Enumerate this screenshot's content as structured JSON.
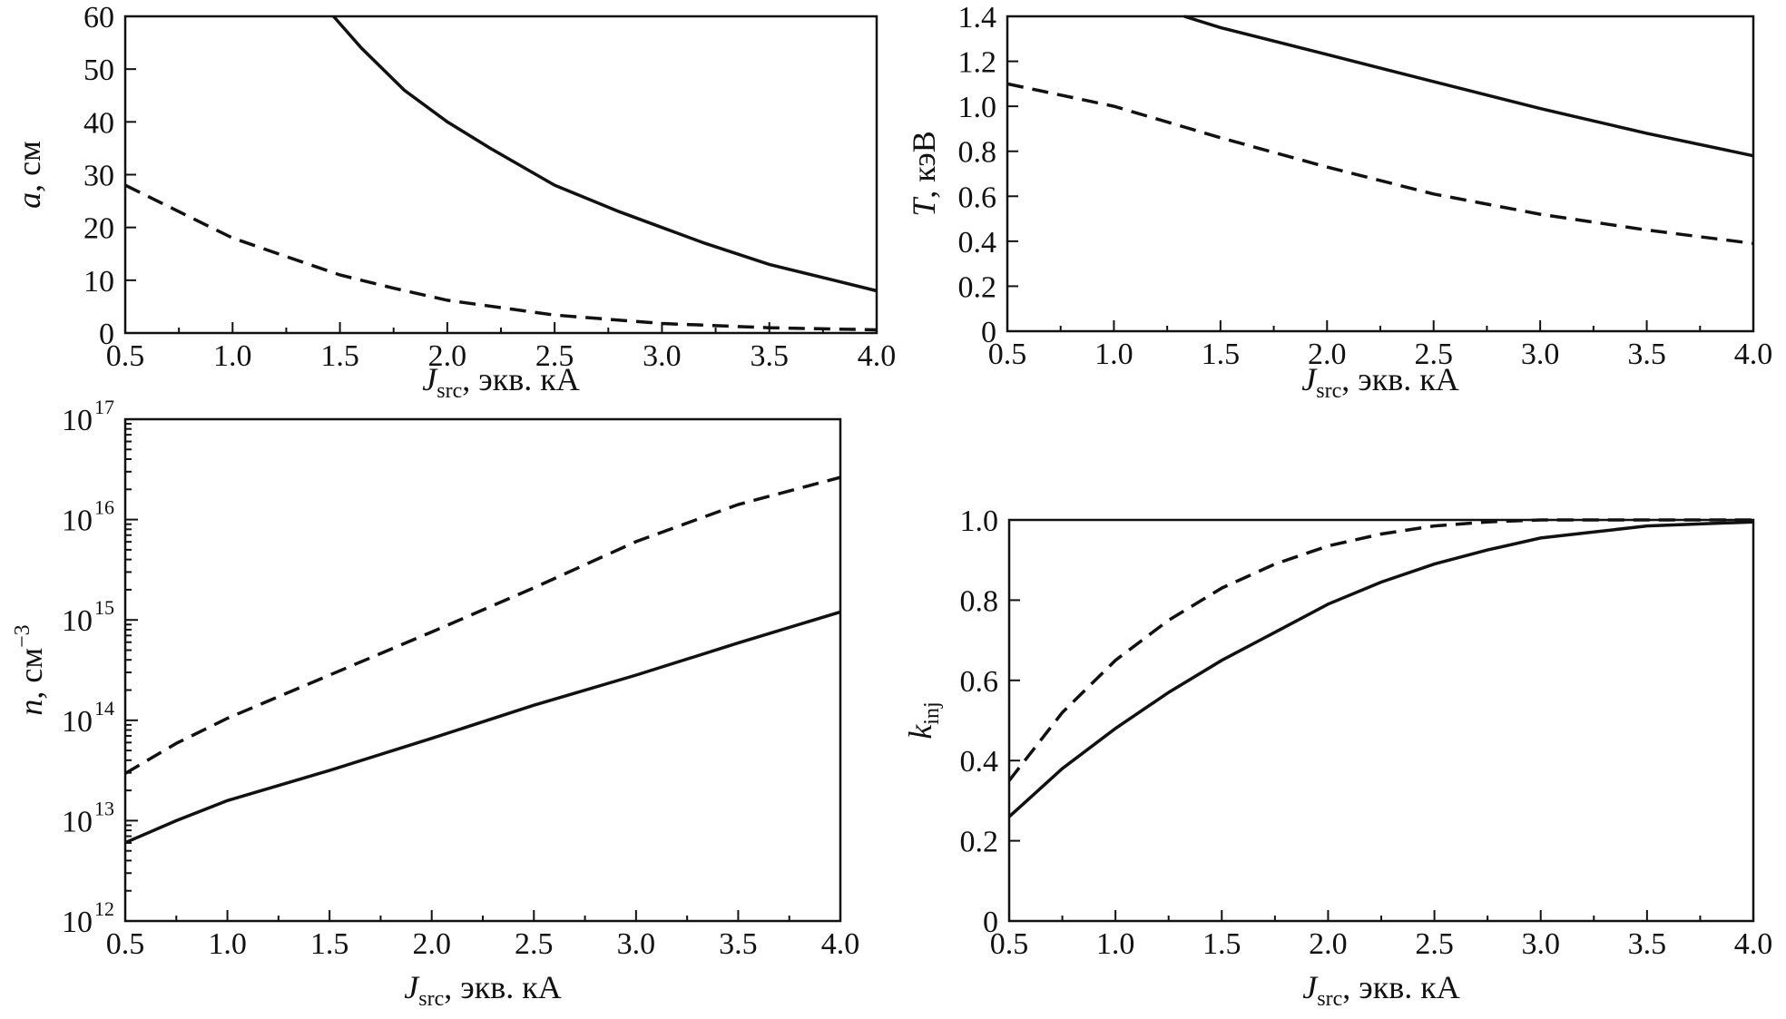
{
  "chart_data": [
    {
      "type": "line",
      "xlabel": "J",
      "xlabel_sub": "src",
      "xlabel_unit": ", экв. кА",
      "ylabel": "a",
      "ylabel_unit": ", см",
      "xlim": [
        0.5,
        4.0
      ],
      "ylim": [
        0,
        60
      ],
      "xticks": [
        0.5,
        1.0,
        1.5,
        2.0,
        2.5,
        3.0,
        3.5,
        4.0
      ],
      "xtick_labels": [
        "0.5",
        "1.0",
        "1.5",
        "2.0",
        "2.5",
        "3.0",
        "3.5",
        "4.0"
      ],
      "yticks": [
        0,
        10,
        20,
        30,
        40,
        50,
        60
      ],
      "ytick_labels": [
        "0",
        "10",
        "20",
        "30",
        "40",
        "50",
        "60"
      ],
      "series": [
        {
          "name": "solid",
          "style": "solid",
          "x": [
            1.47,
            1.6,
            1.8,
            2.0,
            2.2,
            2.5,
            2.8,
            3.0,
            3.2,
            3.5,
            3.8,
            4.0
          ],
          "y": [
            60,
            54,
            46,
            40,
            35,
            28,
            23,
            20,
            17,
            13,
            10,
            8
          ]
        },
        {
          "name": "dashed",
          "style": "dashed",
          "x": [
            0.5,
            0.75,
            1.0,
            1.25,
            1.5,
            1.75,
            2.0,
            2.5,
            3.0,
            3.5,
            4.0
          ],
          "y": [
            28,
            23,
            18,
            14.5,
            11,
            8.5,
            6.2,
            3.4,
            1.8,
            1.0,
            0.6
          ]
        }
      ]
    },
    {
      "type": "line",
      "xlabel": "J",
      "xlabel_sub": "src",
      "xlabel_unit": ", экв. кА",
      "ylabel": "T",
      "ylabel_unit": ", кэВ",
      "xlim": [
        0.5,
        4.0
      ],
      "ylim": [
        0,
        1.4
      ],
      "xticks": [
        0.5,
        1.0,
        1.5,
        2.0,
        2.5,
        3.0,
        3.5,
        4.0
      ],
      "xtick_labels": [
        "0.5",
        "1.0",
        "1.5",
        "2.0",
        "2.5",
        "3.0",
        "3.5",
        "4.0"
      ],
      "yticks": [
        0,
        0.2,
        0.4,
        0.6,
        0.8,
        1.0,
        1.2,
        1.4
      ],
      "ytick_labels": [
        "0",
        "0.2",
        "0.4",
        "0.6",
        "0.8",
        "1.0",
        "1.2",
        "1.4"
      ],
      "series": [
        {
          "name": "solid",
          "style": "solid",
          "x": [
            1.33,
            1.5,
            2.0,
            2.5,
            3.0,
            3.5,
            4.0
          ],
          "y": [
            1.4,
            1.35,
            1.23,
            1.11,
            0.99,
            0.88,
            0.78
          ]
        },
        {
          "name": "dashed",
          "style": "dashed",
          "x": [
            0.5,
            1.0,
            1.5,
            2.0,
            2.5,
            3.0,
            3.5,
            4.0
          ],
          "y": [
            1.1,
            1.0,
            0.86,
            0.73,
            0.61,
            0.52,
            0.45,
            0.39
          ]
        }
      ]
    },
    {
      "type": "line",
      "scale_y": "log",
      "xlabel": "J",
      "xlabel_sub": "src",
      "xlabel_unit": ", экв. кА",
      "ylabel": "n",
      "ylabel_unit": ", см",
      "ylabel_sup": "−3",
      "xlim": [
        0.5,
        4.0
      ],
      "ylim_exp": [
        12,
        17
      ],
      "xticks": [
        0.5,
        1.0,
        1.5,
        2.0,
        2.5,
        3.0,
        3.5,
        4.0
      ],
      "xtick_labels": [
        "0.5",
        "1.0",
        "1.5",
        "2.0",
        "2.5",
        "3.0",
        "3.5",
        "4.0"
      ],
      "ytick_exps": [
        12,
        13,
        14,
        15,
        16,
        17
      ],
      "ytick_base": "10",
      "ytick_exp_labels": [
        "12",
        "13",
        "14",
        "15",
        "16",
        "17"
      ],
      "series": [
        {
          "name": "solid",
          "style": "solid",
          "x": [
            0.5,
            0.75,
            1.0,
            1.5,
            2.0,
            2.5,
            3.0,
            3.5,
            4.0
          ],
          "log10y": [
            12.78,
            13.0,
            13.2,
            13.5,
            13.82,
            14.15,
            14.45,
            14.77,
            15.08
          ]
        },
        {
          "name": "dashed",
          "style": "dashed",
          "x": [
            0.5,
            0.75,
            1.0,
            1.5,
            2.0,
            2.5,
            3.0,
            3.5,
            4.0
          ],
          "log10y": [
            13.47,
            13.77,
            14.02,
            14.45,
            14.88,
            15.32,
            15.78,
            16.15,
            16.42
          ]
        }
      ]
    },
    {
      "type": "line",
      "xlabel": "J",
      "xlabel_sub": "src",
      "xlabel_unit": ", экв. кА",
      "ylabel": "k",
      "ylabel_sub": "inj",
      "xlim": [
        0.5,
        4.0
      ],
      "ylim": [
        0,
        1.0
      ],
      "xticks": [
        0.5,
        1.0,
        1.5,
        2.0,
        2.5,
        3.0,
        3.5,
        4.0
      ],
      "xtick_labels": [
        "0.5",
        "1.0",
        "1.5",
        "2.0",
        "2.5",
        "3.0",
        "3.5",
        "4.0"
      ],
      "yticks": [
        0,
        0.2,
        0.4,
        0.6,
        0.8,
        1.0
      ],
      "ytick_labels": [
        "0",
        "0.2",
        "0.4",
        "0.6",
        "0.8",
        "1.0"
      ],
      "series": [
        {
          "name": "solid",
          "style": "solid",
          "x": [
            0.5,
            0.75,
            1.0,
            1.25,
            1.5,
            1.75,
            2.0,
            2.25,
            2.5,
            2.75,
            3.0,
            3.25,
            3.5,
            3.75,
            4.0
          ],
          "y": [
            0.26,
            0.38,
            0.48,
            0.57,
            0.65,
            0.72,
            0.79,
            0.845,
            0.89,
            0.925,
            0.955,
            0.97,
            0.985,
            0.99,
            0.995
          ]
        },
        {
          "name": "dashed",
          "style": "dashed",
          "x": [
            0.5,
            0.75,
            1.0,
            1.25,
            1.5,
            1.75,
            2.0,
            2.25,
            2.5,
            2.75,
            3.0,
            3.5,
            4.0
          ],
          "y": [
            0.35,
            0.52,
            0.65,
            0.75,
            0.83,
            0.89,
            0.935,
            0.965,
            0.985,
            0.995,
            1.0,
            1.0,
            1.0
          ]
        }
      ]
    }
  ]
}
